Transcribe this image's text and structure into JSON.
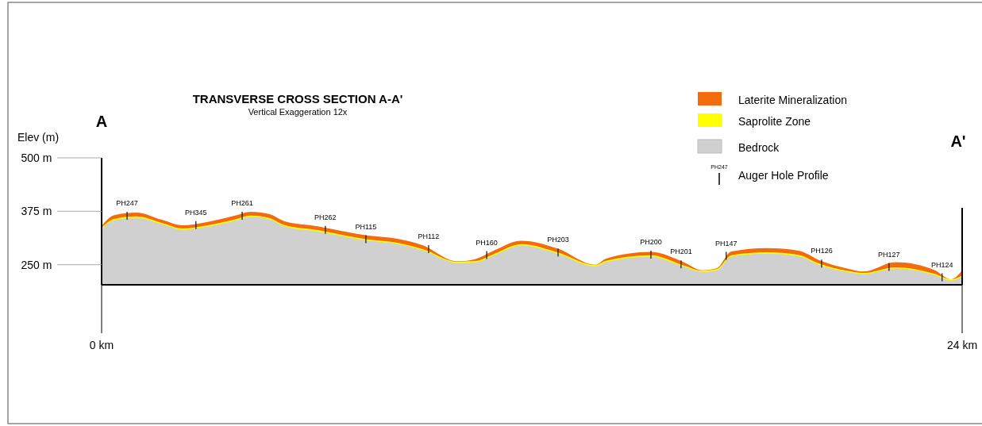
{
  "chart_data": {
    "type": "area",
    "title": "TRANSVERSE CROSS SECTION A-A'",
    "subtitle": "Vertical Exaggeration 12x",
    "ylabel": "Elev (m)",
    "legend": "top right",
    "x": [
      0,
      0.35,
      0.97,
      1.68,
      2.26,
      3.01,
      3.72,
      4.16,
      4.69,
      5.09,
      6.02,
      7.44,
      8.15,
      8.94,
      9.92,
      10.45,
      10.89,
      11.71,
      12.71,
      13.77,
      14.06,
      15.32,
      16.21,
      16.76,
      17.16,
      17.56,
      18.55,
      19.44,
      20.0,
      20.79,
      21.25,
      22.14,
      23.22,
      23.69,
      24.0
    ],
    "series": [
      {
        "name": "Laterite Mineralization",
        "color": "#f26c0d",
        "values": [
          341,
          366,
          372,
          355,
          342,
          351,
          365,
          374,
          368,
          352,
          340,
          318,
          312,
          296,
          258,
          264,
          281,
          306,
          288,
          250,
          264,
          280,
          257,
          237,
          242,
          281,
          289,
          283,
          261,
          241,
          234,
          256,
          238,
          216,
          237
        ]
      },
      {
        "name": "Saprolite Zone",
        "color": "#ffff00",
        "values": [
          337,
          357,
          363,
          348,
          335,
          343,
          356,
          365,
          359,
          343,
          331,
          309,
          303,
          287,
          257,
          259,
          273,
          298,
          279,
          249,
          259,
          272,
          249,
          236,
          240,
          272,
          279,
          273,
          253,
          236,
          231,
          244,
          229,
          216,
          225
        ]
      },
      {
        "name": "Bedrock",
        "color": "#d0d0d0",
        "values": [
          334,
          354,
          360,
          345,
          332,
          340,
          353,
          362,
          356,
          340,
          328,
          306,
          300,
          284,
          254,
          256,
          270,
          295,
          276,
          246,
          256,
          269,
          246,
          233,
          237,
          269,
          276,
          270,
          250,
          233,
          228,
          241,
          226,
          213,
          222
        ]
      }
    ],
    "xlim": [
      0,
      24
    ],
    "xticks": [
      {
        "value": 0,
        "label": "0 km"
      },
      {
        "value": 24,
        "label": "24 km"
      }
    ],
    "ylim": [
      203,
      500
    ],
    "yticks": [
      {
        "value": 250,
        "label": "250 m"
      },
      {
        "value": 375,
        "label": "375 m"
      },
      {
        "value": 500,
        "label": "500 m"
      }
    ],
    "annotations": [
      "A",
      "A'",
      "Auger Hole Profile",
      "PH247",
      {
        "text": "PH247",
        "x": 0.71,
        "y": 372
      },
      {
        "text": "PH345",
        "x": 2.63,
        "y": 350
      },
      {
        "text": "PH261",
        "x": 3.92,
        "y": 372
      },
      {
        "text": "PH262",
        "x": 6.24,
        "y": 339
      },
      {
        "text": "PH115",
        "x": 7.37,
        "y": 317
      },
      {
        "text": "PH112",
        "x": 9.12,
        "y": 294
      },
      {
        "text": "PH160",
        "x": 10.74,
        "y": 280
      },
      {
        "text": "PH203",
        "x": 12.73,
        "y": 286
      },
      {
        "text": "PH200",
        "x": 15.32,
        "y": 281
      },
      {
        "text": "PH201",
        "x": 16.16,
        "y": 258
      },
      {
        "text": "PH147",
        "x": 17.42,
        "y": 278
      },
      {
        "text": "PH126",
        "x": 20.08,
        "y": 260
      },
      {
        "text": "PH127",
        "x": 21.96,
        "y": 252
      },
      {
        "text": "PH124",
        "x": 23.44,
        "y": 228
      }
    ]
  }
}
